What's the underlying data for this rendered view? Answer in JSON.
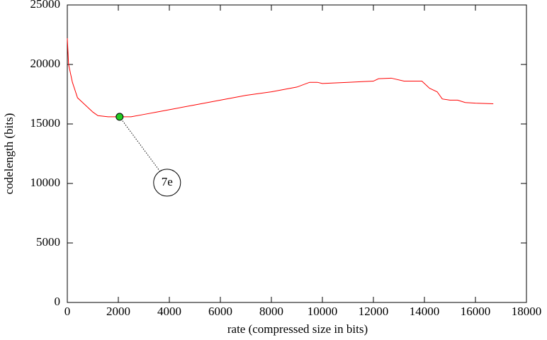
{
  "chart_data": {
    "type": "line",
    "x_label": "rate (compressed size in bits)",
    "y_label": "codelength (bits)",
    "x": [
      0,
      50,
      200,
      400,
      600,
      1000,
      1200,
      1600,
      2000,
      2500,
      3000,
      3500,
      4000,
      5000,
      6000,
      7000,
      8000,
      9000,
      9500,
      9800,
      10000,
      11000,
      12000,
      12200,
      12700,
      13200,
      13900,
      14200,
      14500,
      14700,
      15000,
      15300,
      15600,
      16000,
      16700
    ],
    "values": [
      22200,
      20000,
      18500,
      17200,
      16800,
      16000,
      15700,
      15600,
      15600,
      15600,
      15800,
      16000,
      16200,
      16600,
      17000,
      17400,
      17700,
      18100,
      18500,
      18500,
      18400,
      18500,
      18600,
      18800,
      18850,
      18600,
      18600,
      18000,
      17700,
      17100,
      17000,
      17000,
      16800,
      16750,
      16700
    ],
    "color": "#ff0000",
    "points": [
      {
        "x": 2050,
        "y": 15600,
        "label": "7e",
        "color": "#22cc22"
      }
    ],
    "xlim": [
      0,
      18000
    ],
    "xticks": [
      0,
      2000,
      4000,
      6000,
      8000,
      10000,
      12000,
      14000,
      16000,
      18000
    ],
    "ylim": [
      0,
      25000
    ],
    "yticks": [
      0,
      5000,
      10000,
      15000,
      20000,
      25000
    ]
  }
}
